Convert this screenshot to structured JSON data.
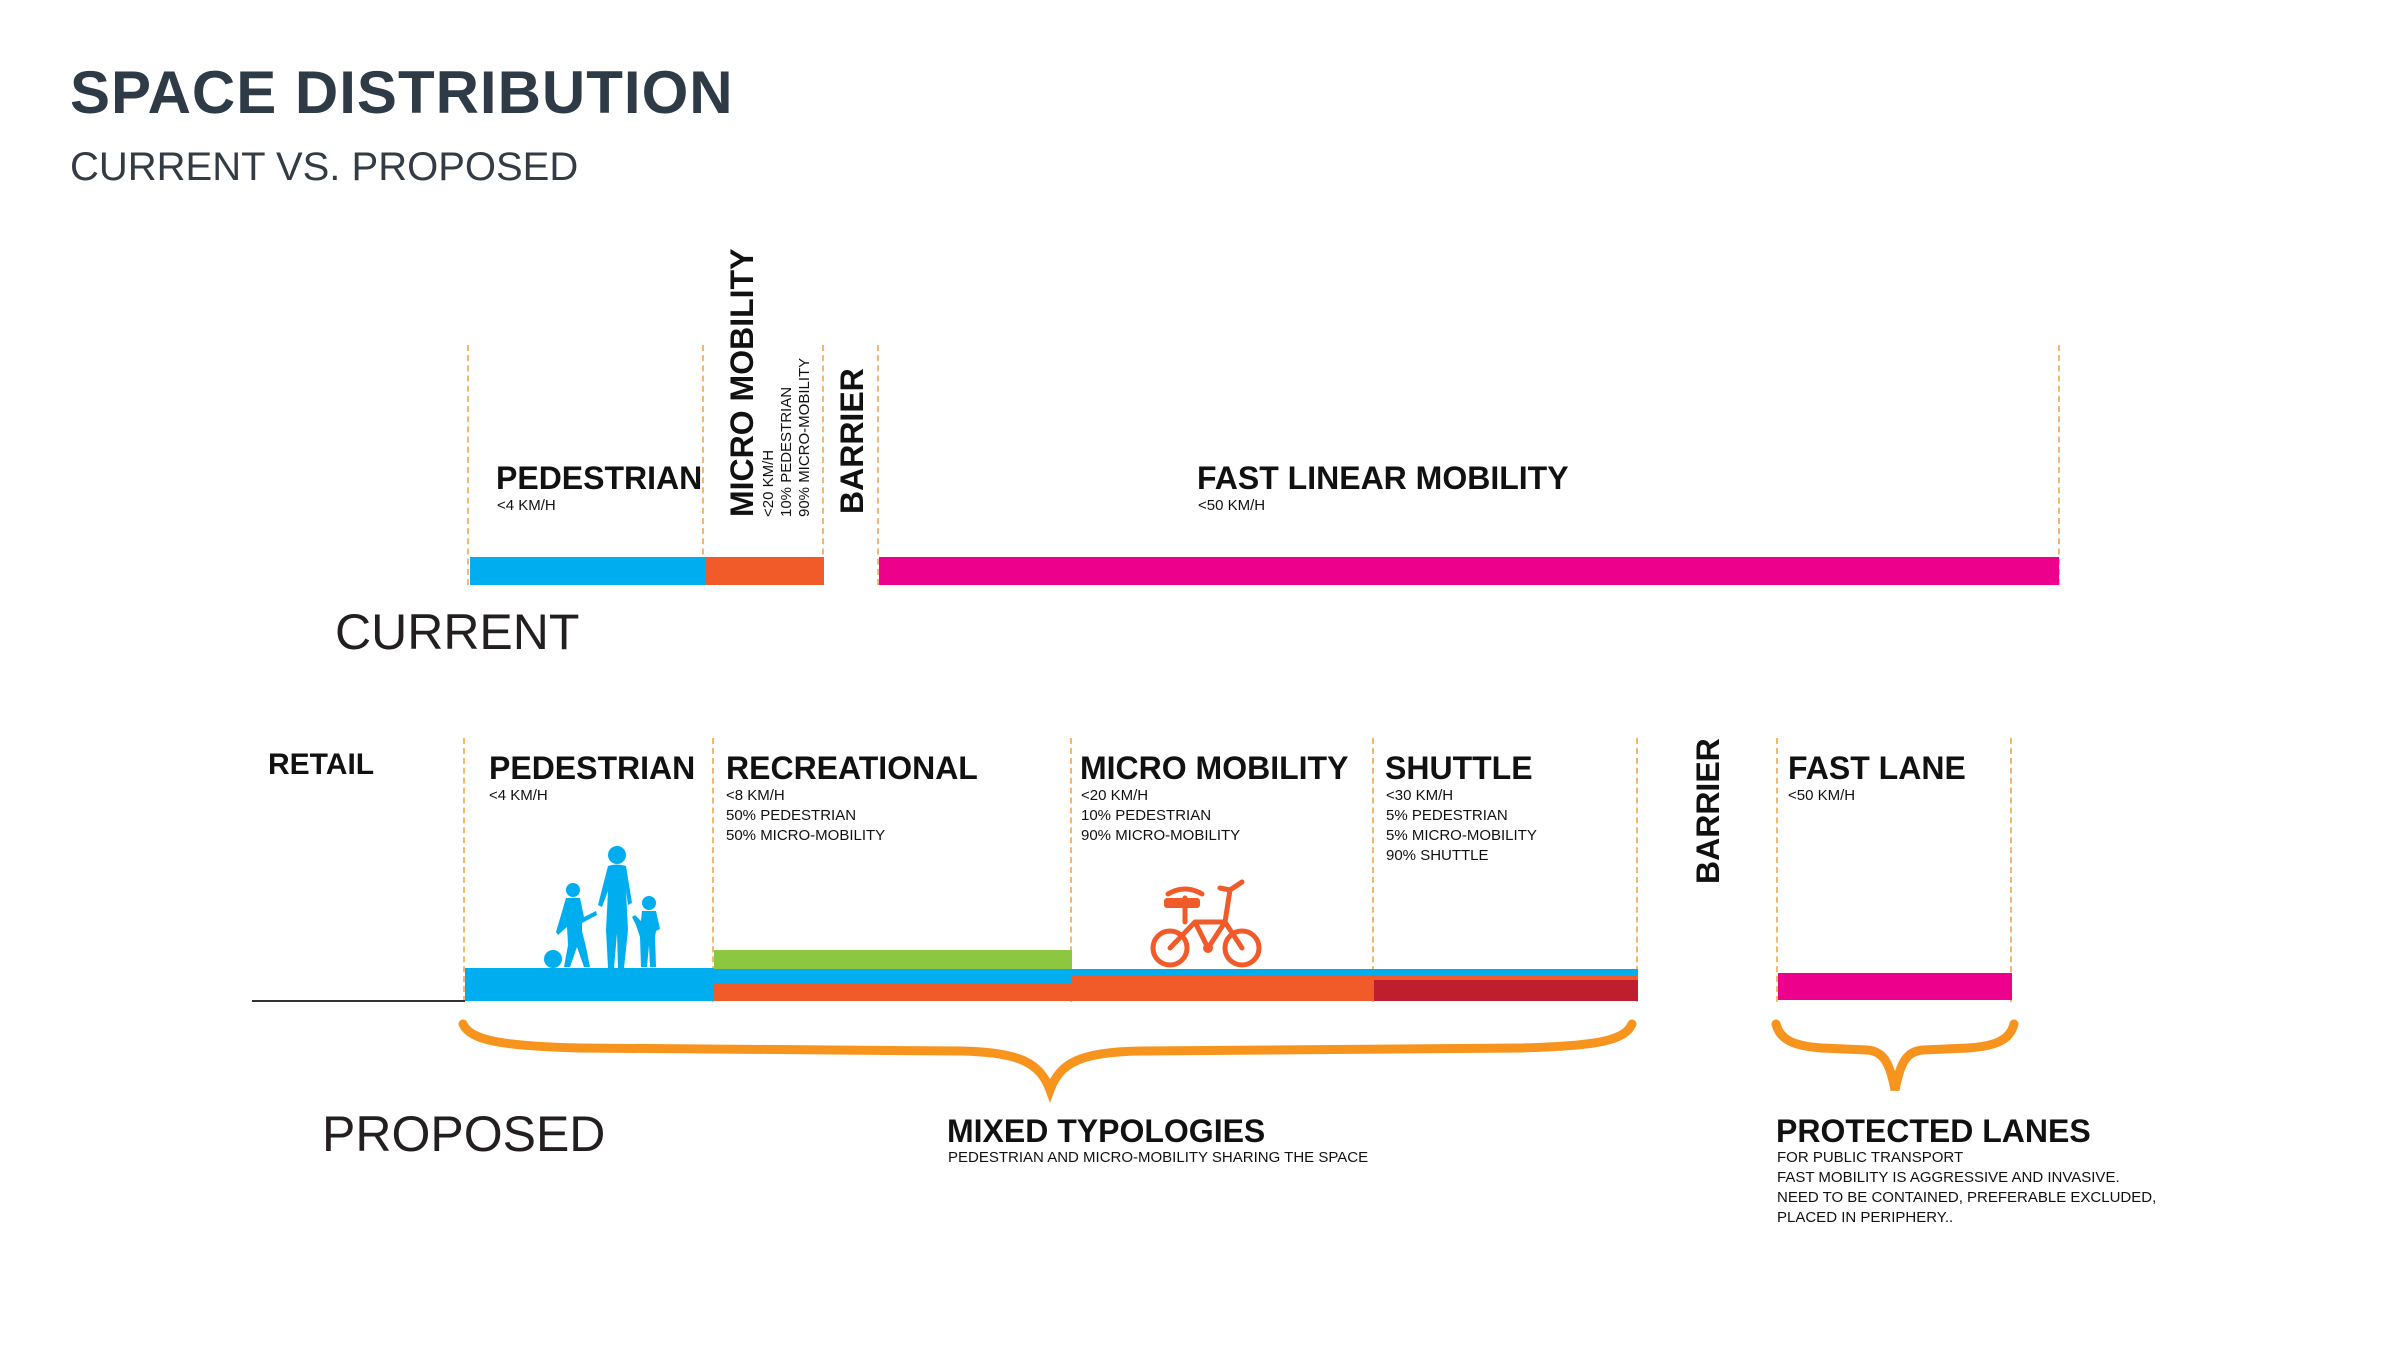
{
  "header": {
    "title": "SPACE DISTRIBUTION",
    "subtitle": "CURRENT VS. PROPOSED"
  },
  "current": {
    "section_label": "CURRENT",
    "pedestrian": {
      "name": "PEDESTRIAN",
      "speed": "<4 KM/H",
      "color": "#00aeef"
    },
    "micro_mobility": {
      "name": "MICRO MOBILITY",
      "speed": "<20 KM/H",
      "line2": "10% PEDESTRIAN",
      "line3": "90% MICRO-MOBILITY",
      "color": "#f15a29"
    },
    "barrier": {
      "name": "BARRIER"
    },
    "fast_linear": {
      "name": "FAST LINEAR MOBILITY",
      "speed": "<50 KM/H",
      "color": "#ec008c"
    }
  },
  "proposed": {
    "section_label": "PROPOSED",
    "retail": {
      "name": "RETAIL"
    },
    "pedestrian": {
      "name": "PEDESTRIAN",
      "speed": "<4 KM/H",
      "color": "#00aeef"
    },
    "recreational": {
      "name": "RECREATIONAL",
      "speed": "<8 KM/H",
      "line2": "50% PEDESTRIAN",
      "line3": "50% MICRO-MOBILITY",
      "color": "#8dc63f"
    },
    "micro_mobility": {
      "name": "MICRO MOBILITY",
      "speed": "<20 KM/H",
      "line2": "10% PEDESTRIAN",
      "line3": "90% MICRO-MOBILITY",
      "color": "#f15a29"
    },
    "shuttle": {
      "name": "SHUTTLE",
      "speed": "<30 KM/H",
      "line2": "5% PEDESTRIAN",
      "line3": "5% MICRO-MOBILITY",
      "line4": "90% SHUTTLE",
      "color": "#be1e2d"
    },
    "barrier": {
      "name": "BARRIER"
    },
    "fast_lane": {
      "name": "FAST LANE",
      "speed": "<50 KM/H",
      "color": "#ec008c"
    },
    "mixed": {
      "title": "MIXED TYPOLOGIES",
      "desc": "PEDESTRIAN AND MICRO-MOBILITY SHARING THE SPACE"
    },
    "protected": {
      "title": "PROTECTED LANES",
      "desc1": "FOR PUBLIC TRANSPORT",
      "desc2": "FAST MOBILITY IS AGGRESSIVE AND INVASIVE.",
      "desc3": "NEED TO BE CONTAINED, PREFERABLE EXCLUDED,",
      "desc4": "PLACED IN PERIPHERY.."
    }
  },
  "colors": {
    "brace": "#f7941d",
    "dash": "#f2b870",
    "title": "#2e3a46"
  }
}
